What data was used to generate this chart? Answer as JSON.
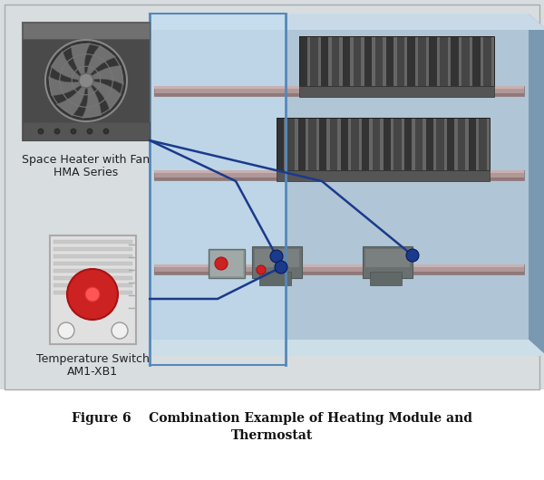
{
  "title_line1": "Figure 6    Combination Example of Heating Module and",
  "title_line2": "Thermostat",
  "label1_line1": "Space Heater with Fan",
  "label1_line2": "HMA Series",
  "label2_line1": "Temperature Switch",
  "label2_line2": "AM1-XB1",
  "bg_color": "#d8dde0",
  "main_bg": "#d8dde0",
  "caption_bg": "#ffffff",
  "line_color": "#1a3a8c",
  "dot_color": "#1a3a8c",
  "dot_color_red": "#cc2222",
  "wall_back": "#b8cdd8",
  "wall_back2": "#9ab5c8",
  "wall_right": "#7a9eb5",
  "wall_floor": "#c0d8e8",
  "glass_left": "#c8dff0",
  "glass_top": "#d0e8f5",
  "rail_top": "#b8a0a0",
  "rail_front": "#a08888",
  "rail_dark": "#907878",
  "fin_dark": "#383838",
  "fin_light": "#505050",
  "fin_mid": "#444444",
  "figsize": [
    6.0,
    5.3
  ],
  "dpi": 100
}
